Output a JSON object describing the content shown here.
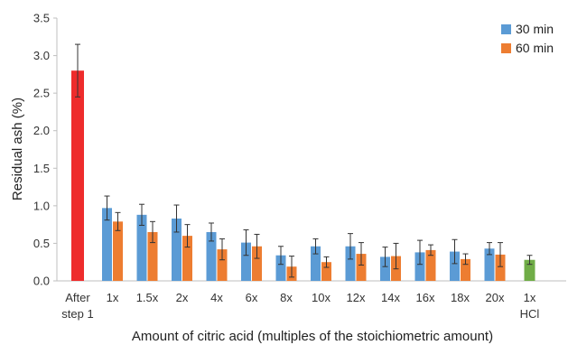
{
  "chart_data": {
    "type": "bar",
    "title": "",
    "xlabel": "Amount of citric acid (multiples of the stoichiometric amount)",
    "ylabel": "Residual ash (%)",
    "ylim": [
      0,
      3.5
    ],
    "yticks": [
      "0.0",
      "0.5",
      "1.0",
      "1.5",
      "2.0",
      "2.5",
      "3.0",
      "3.5"
    ],
    "grid": false,
    "legend_position": "top-right",
    "categories": [
      [
        "After",
        "step 1"
      ],
      [
        "1x"
      ],
      [
        "1.5x"
      ],
      [
        "2x"
      ],
      [
        "4x"
      ],
      [
        "6x"
      ],
      [
        "8x"
      ],
      [
        "10x"
      ],
      [
        "12x"
      ],
      [
        "14x"
      ],
      [
        "16x"
      ],
      [
        "18x"
      ],
      [
        "20x"
      ],
      [
        "1x",
        "HCl"
      ]
    ],
    "series": [
      {
        "name": "30 min",
        "color": "#5b9bd5",
        "values": [
          null,
          0.97,
          0.88,
          0.83,
          0.65,
          0.51,
          0.34,
          0.46,
          0.46,
          0.32,
          0.38,
          0.39,
          0.43,
          null
        ],
        "errors": [
          null,
          0.16,
          0.14,
          0.18,
          0.12,
          0.17,
          0.12,
          0.1,
          0.17,
          0.13,
          0.16,
          0.16,
          0.08,
          null
        ]
      },
      {
        "name": "60 min",
        "color": "#ed7d31",
        "values": [
          null,
          0.79,
          0.65,
          0.6,
          0.42,
          0.46,
          0.19,
          0.25,
          0.36,
          0.33,
          0.41,
          0.29,
          0.35,
          null
        ],
        "errors": [
          null,
          0.12,
          0.14,
          0.15,
          0.14,
          0.16,
          0.14,
          0.07,
          0.15,
          0.17,
          0.07,
          0.07,
          0.16,
          null
        ]
      }
    ],
    "single_bars": [
      {
        "category_index": 0,
        "value": 2.8,
        "error": 0.35,
        "color": "#ee2c2c"
      },
      {
        "category_index": 13,
        "value": 0.28,
        "error": 0.06,
        "color": "#70ad47"
      }
    ]
  }
}
